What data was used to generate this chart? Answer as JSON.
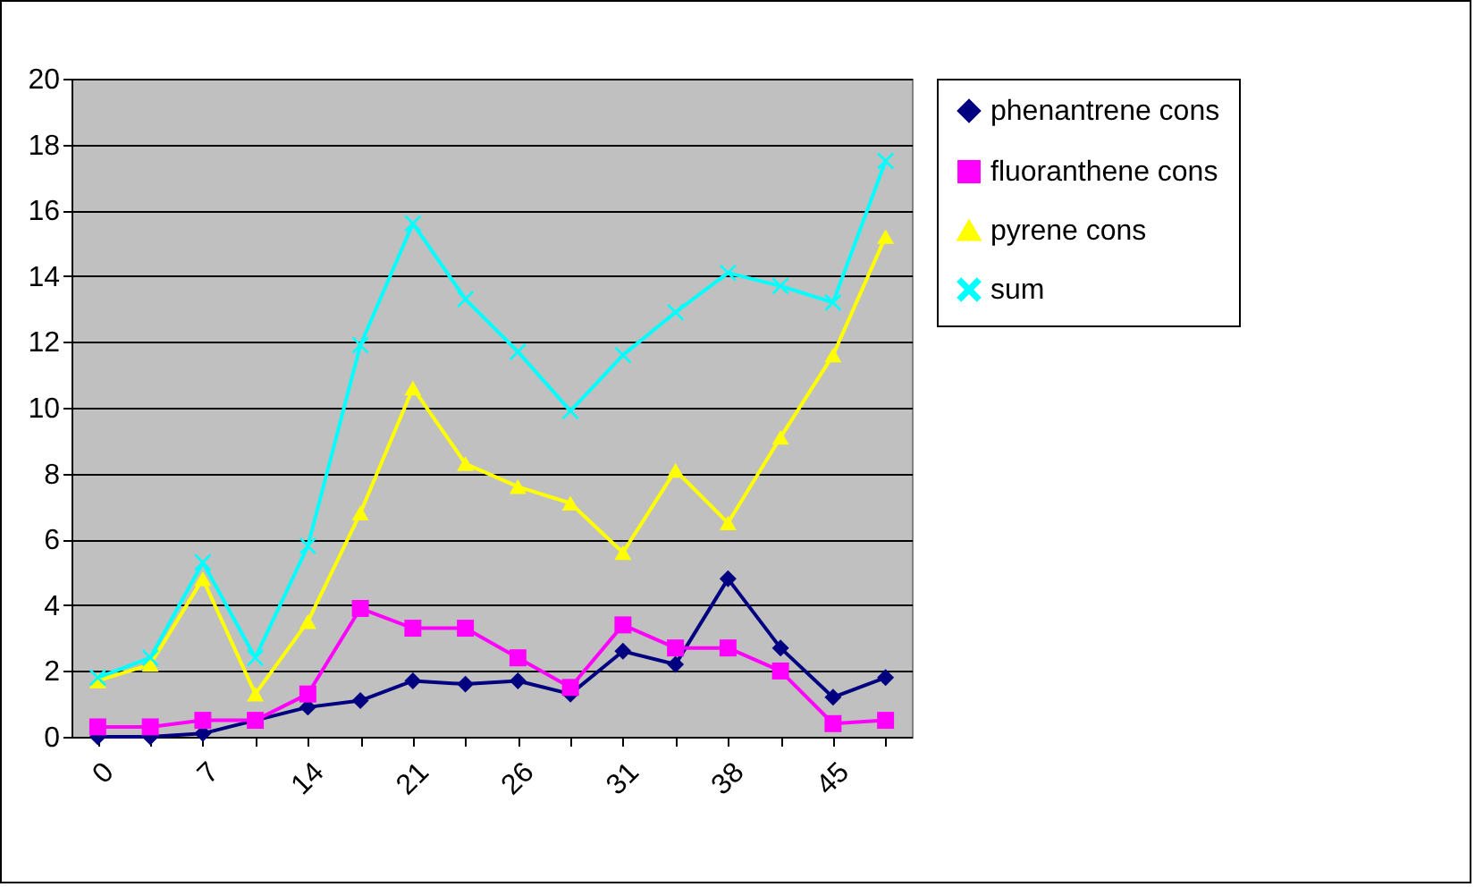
{
  "chart_data": {
    "type": "line",
    "categories": [
      "0",
      null,
      "7",
      null,
      "14",
      null,
      "21",
      null,
      "26",
      null,
      "31",
      null,
      "38",
      null,
      "45",
      null
    ],
    "ylim": [
      0,
      20
    ],
    "yticks": [
      0,
      2,
      4,
      6,
      8,
      10,
      12,
      14,
      16,
      18,
      20
    ],
    "grid": "y",
    "legend": "right",
    "series": [
      {
        "name": "phenantrene cons",
        "color": "#000080",
        "marker": "diamond",
        "values": [
          0,
          0,
          0.1,
          0.5,
          0.9,
          1.1,
          1.7,
          1.6,
          1.7,
          1.3,
          2.6,
          2.2,
          4.8,
          2.7,
          1.2,
          1.8
        ]
      },
      {
        "name": "fluoranthene cons",
        "color": "#ff00ff",
        "marker": "square",
        "values": [
          0.3,
          0.3,
          0.5,
          0.5,
          1.3,
          3.9,
          3.3,
          3.3,
          2.4,
          1.5,
          3.4,
          2.7,
          2.7,
          2.0,
          0.4,
          0.5
        ]
      },
      {
        "name": "pyrene cons",
        "color": "#ffff00",
        "marker": "triangle",
        "values": [
          1.7,
          2.2,
          4.8,
          1.3,
          3.5,
          6.8,
          10.6,
          8.3,
          7.6,
          7.1,
          5.6,
          8.1,
          6.5,
          9.1,
          11.6,
          15.2
        ]
      },
      {
        "name": "sum",
        "color": "#00ffff",
        "marker": "cross",
        "values": [
          1.8,
          2.4,
          5.3,
          2.4,
          5.8,
          11.9,
          15.6,
          13.3,
          11.7,
          9.9,
          11.6,
          12.9,
          14.1,
          13.7,
          13.2,
          17.5
        ]
      }
    ]
  }
}
